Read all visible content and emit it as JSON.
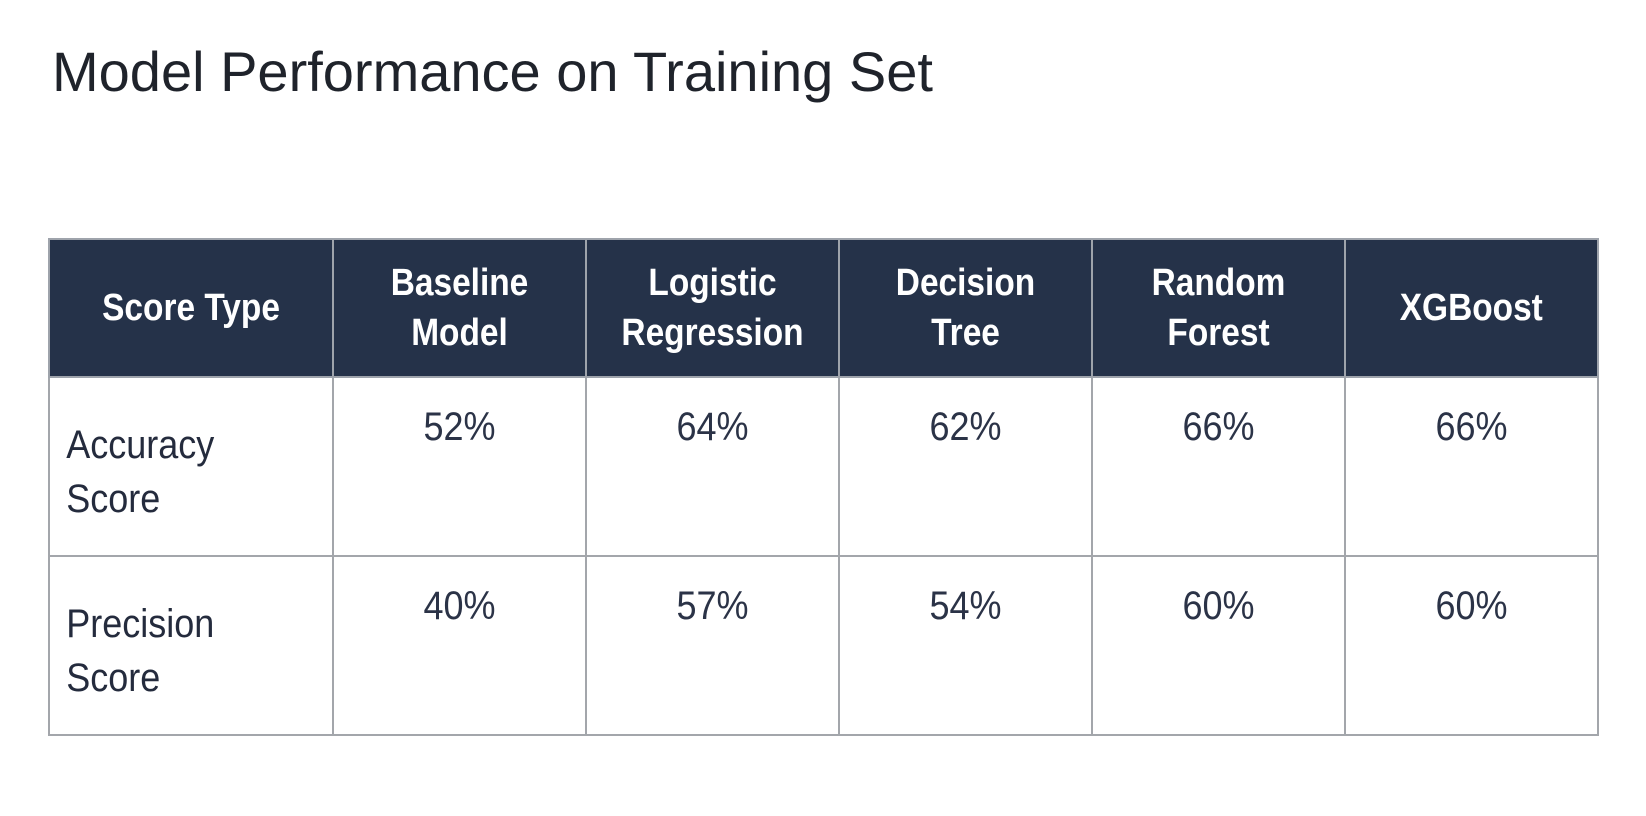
{
  "title": "Model Performance on Training Set",
  "table": {
    "headers": [
      "Score Type",
      "Baseline Model",
      "Logistic Regression",
      "Decision Tree",
      "Random Forest",
      "XGBoost"
    ],
    "rows": [
      {
        "label": "Accuracy Score",
        "values": [
          "52%",
          "64%",
          "62%",
          "66%",
          "66%"
        ]
      },
      {
        "label": "Precision Score",
        "values": [
          "40%",
          "57%",
          "54%",
          "60%",
          "60%"
        ]
      }
    ]
  },
  "colors": {
    "header_background": "#253249",
    "header_text": "#ffffff",
    "body_text": "#242b3d",
    "grid_lines": "#a3a6ab",
    "title_text": "#1f232b"
  }
}
